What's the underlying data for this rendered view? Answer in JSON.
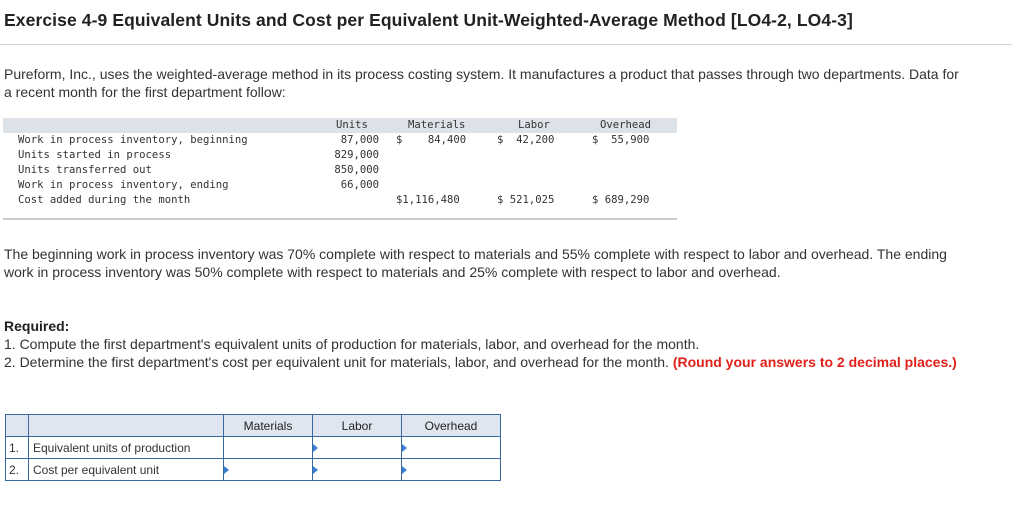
{
  "title": "Exercise 4-9 Equivalent Units and Cost per Equivalent Unit-Weighted-Average Method [LO4-2, LO4-3]",
  "intro": "Pureform, Inc., uses the weighted-average method in its process costing system. It manufactures a product that passes through two departments. Data for a recent month for the first department follow:",
  "data_table": {
    "headers": {
      "units": "Units",
      "materials": "Materials",
      "labor": "Labor",
      "overhead": "Overhead"
    },
    "rows": [
      {
        "label": "Work in process inventory, beginning",
        "units": "87,000",
        "materials": "$    84,400",
        "labor": "$  42,200",
        "overhead": "$  55,900"
      },
      {
        "label": "Units started in process",
        "units": "829,000",
        "materials": "",
        "labor": "",
        "overhead": ""
      },
      {
        "label": "Units transferred out",
        "units": "850,000",
        "materials": "",
        "labor": "",
        "overhead": ""
      },
      {
        "label": "Work in process inventory, ending",
        "units": "66,000",
        "materials": "",
        "labor": "",
        "overhead": ""
      },
      {
        "label": "Cost added during the month",
        "units": "",
        "materials": "$1,116,480",
        "labor": "$ 521,025",
        "overhead": "$ 689,290"
      }
    ]
  },
  "completion_text": "The beginning work in process inventory was 70% complete with respect to materials and 55% complete with respect to labor and overhead. The ending work in process inventory was 50% complete with respect to materials and 25% complete with respect to labor and overhead.",
  "required": {
    "heading": "Required:",
    "item1": "1. Compute the first department's equivalent units of production for materials, labor, and overhead for the month.",
    "item2": "2. Determine the first department's cost per equivalent unit for materials, labor, and overhead for the month.",
    "item2_note": "(Round your answers to 2 decimal places.)"
  },
  "answer_table": {
    "headers": {
      "materials": "Materials",
      "labor": "Labor",
      "overhead": "Overhead"
    },
    "rows": [
      {
        "num": "1.",
        "label": "Equivalent units of production",
        "materials": "",
        "labor": "",
        "overhead": ""
      },
      {
        "num": "2.",
        "label": "Cost per equivalent unit",
        "materials": "",
        "labor": "",
        "overhead": ""
      }
    ]
  }
}
